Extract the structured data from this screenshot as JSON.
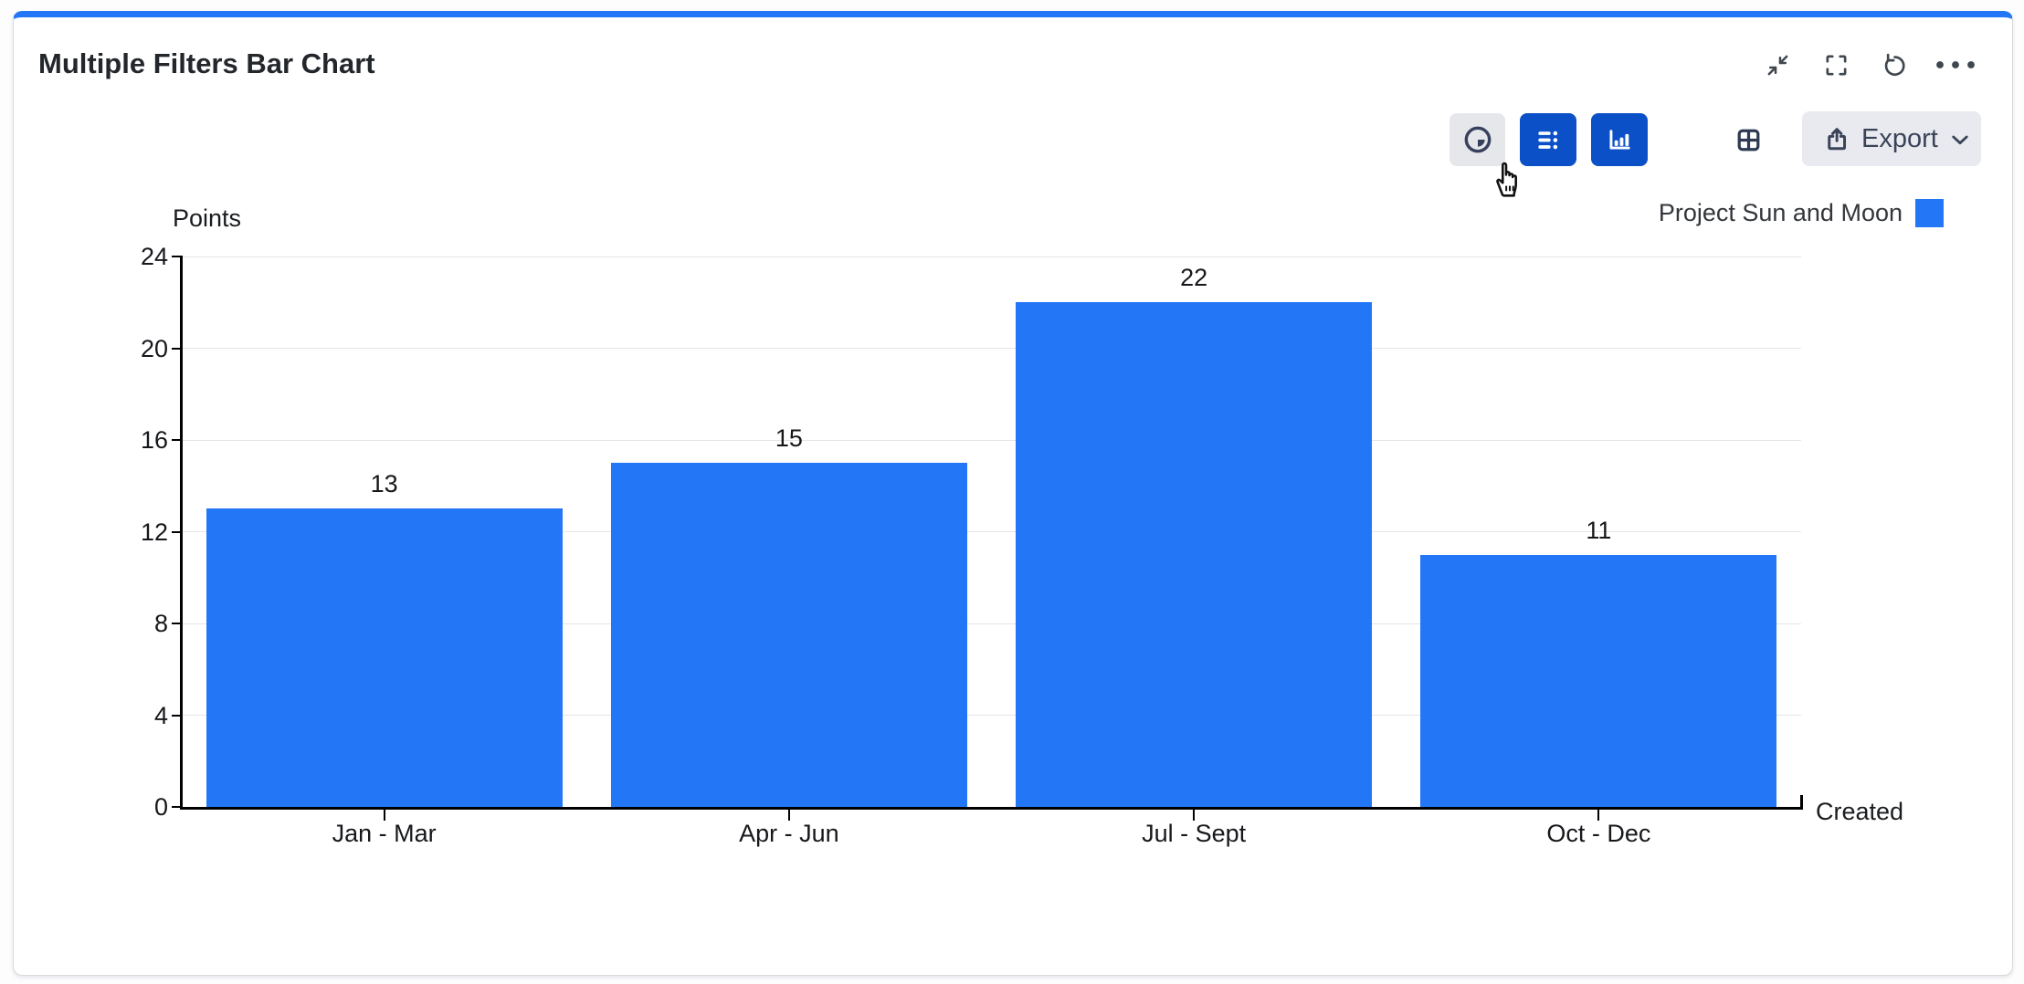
{
  "header": {
    "title": "Multiple Filters Bar Chart",
    "icons": [
      "collapse-icon",
      "fullscreen-icon",
      "refresh-icon",
      "more-options-icon"
    ]
  },
  "toolbar": {
    "buttons": [
      {
        "name": "time-range-button",
        "icon": "clock-icon",
        "state": "hover"
      },
      {
        "name": "list-view-button",
        "icon": "list-details-icon",
        "state": "selected"
      },
      {
        "name": "chart-view-button",
        "icon": "bar-chart-icon",
        "state": "selected"
      },
      {
        "name": "table-view-button",
        "icon": "grid-icon",
        "state": "default"
      }
    ],
    "export_label": "Export"
  },
  "legend": {
    "label": "Project Sun and Moon",
    "color": "#2377F7",
    "position": "top-right"
  },
  "chart_data": {
    "type": "bar",
    "categories": [
      "Jan - Mar",
      "Apr - Jun",
      "Jul - Sept",
      "Oct - Dec"
    ],
    "series": [
      {
        "name": "Project Sun and Moon",
        "color": "#2377F7",
        "values": [
          13,
          15,
          22,
          11
        ]
      }
    ],
    "value_labels": [
      13,
      15,
      22,
      11
    ],
    "ylabel": "Points",
    "xlabel": "Created",
    "ylim": [
      0,
      24
    ],
    "ytick_step": 4,
    "yticks": [
      0,
      4,
      8,
      12,
      16,
      20,
      24
    ],
    "grid": true,
    "legend_position": "top-right"
  },
  "colors": {
    "accent_blue": "#2377F7",
    "button_blue": "#0C50C8",
    "icon_navy": "#37415C",
    "toolbar_button_bg": "#E9EAEF",
    "card_border": "#D7D9DD",
    "gridline": "#E5E5E5",
    "axis": "#000000",
    "text": "#16181B"
  }
}
